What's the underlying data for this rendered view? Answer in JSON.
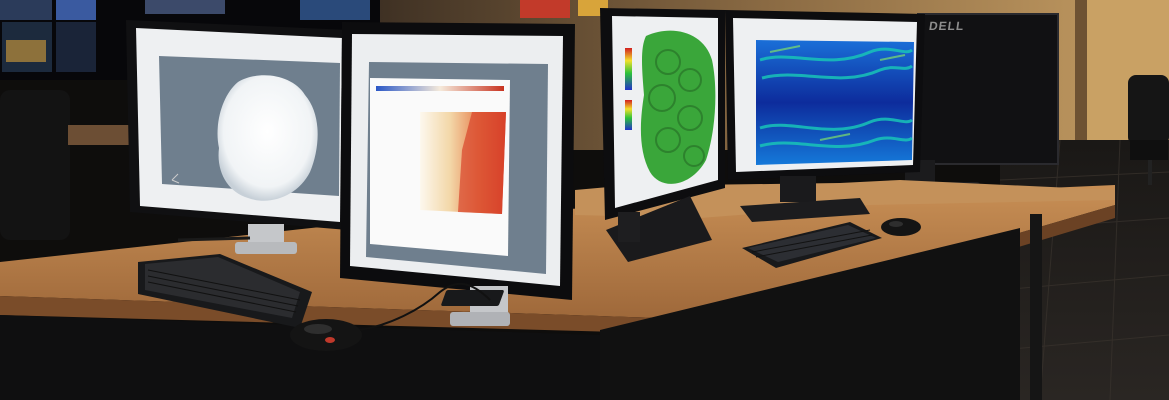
{
  "scene": {
    "description_kind": "photo",
    "monitor_brand_text": "DELL"
  },
  "colors": {
    "desk_wood": "#b07a47",
    "desk_edge": "#7a4c29",
    "wall": "#c49b60",
    "screen_slate": "#6f7f8e",
    "field_red": "#d9452b",
    "field_cyan": "#18c4b8",
    "field_blue": "#0c1e8a",
    "volume_green": "#3aa63a"
  },
  "icons": [
    "keyboard-icon",
    "mouse-icon"
  ]
}
